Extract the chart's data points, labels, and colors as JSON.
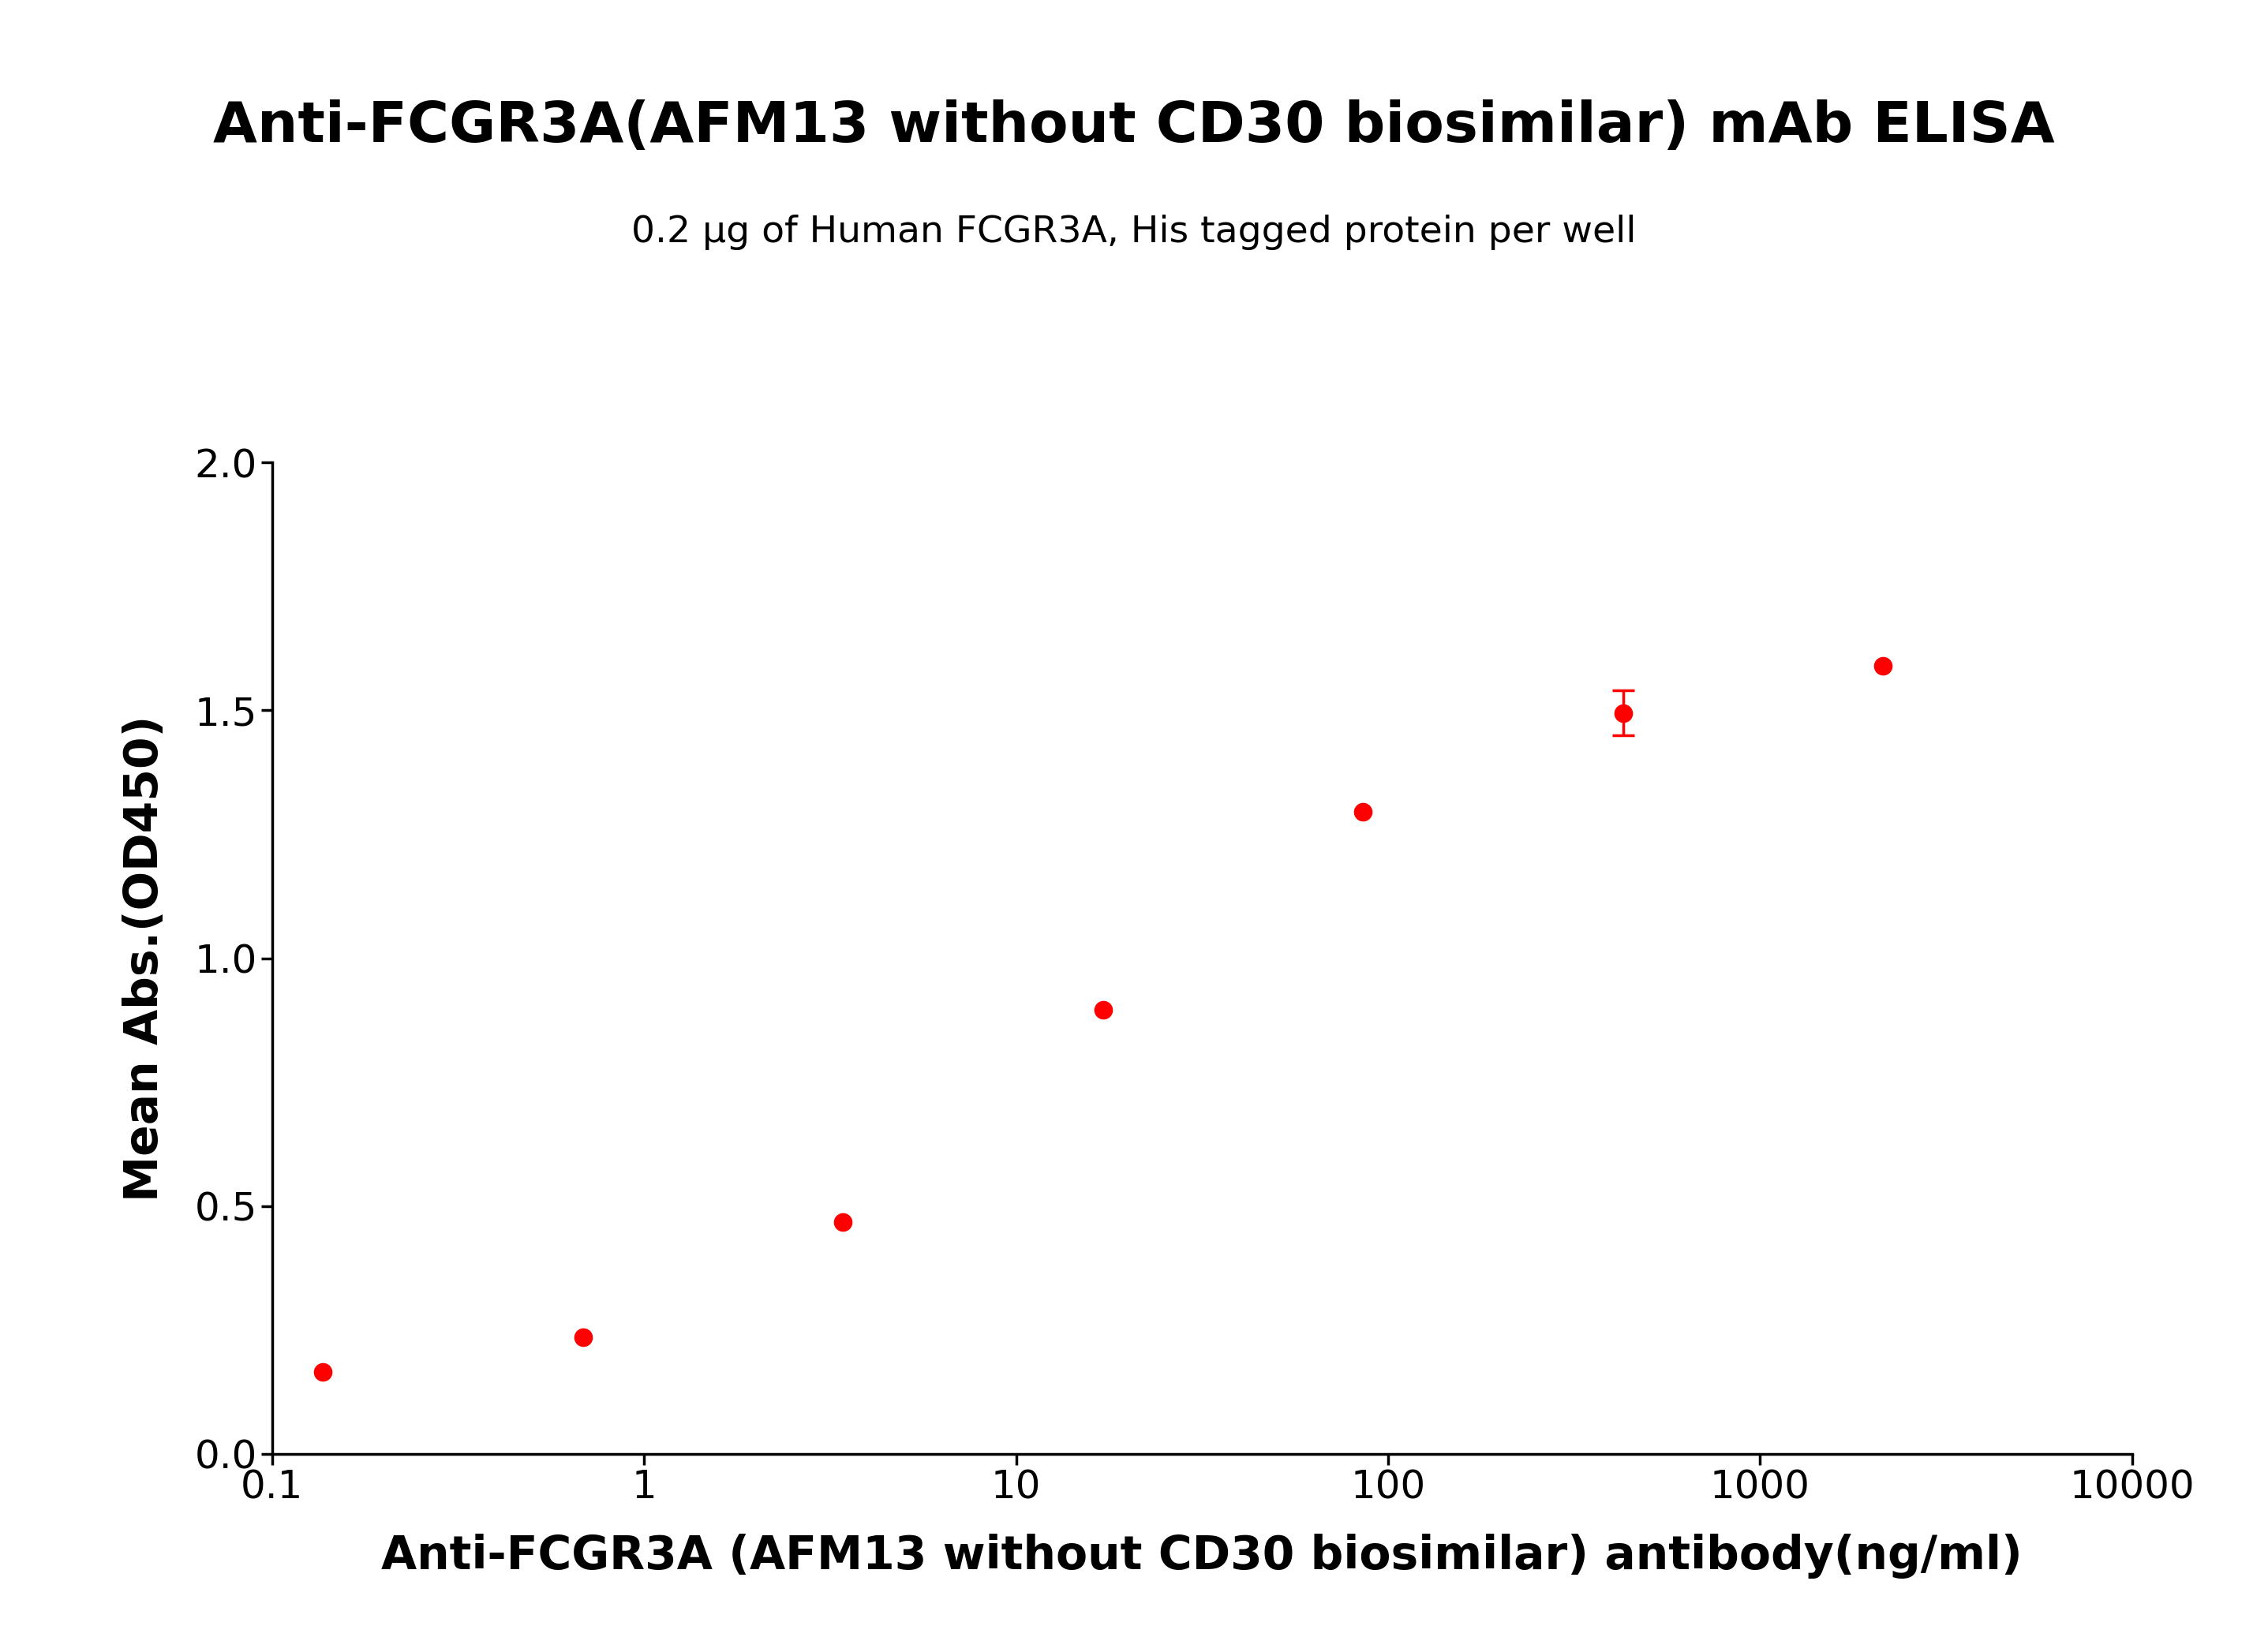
{
  "title": "Anti-FCGR3A(AFM13 without CD30 biosimilar) mAb ELISA",
  "subtitle": "0.2 μg of Human FCGR3A, His tagged protein per well",
  "xlabel": "Anti-FCGR3A (AFM13 without CD30 biosimilar) antibody(ng/ml)",
  "ylabel": "Mean Abs.(OD450)",
  "x_data": [
    0.137,
    0.685,
    3.425,
    17.125,
    85.625,
    428.125,
    2140.625
  ],
  "y_data": [
    0.165,
    0.235,
    0.468,
    0.895,
    1.295,
    1.495,
    1.59
  ],
  "y_err": [
    0.0,
    0.0,
    0.0,
    0.0,
    0.0,
    0.045,
    0.0
  ],
  "xlim": [
    0.1,
    10000
  ],
  "ylim": [
    0.0,
    2.0
  ],
  "yticks": [
    0.0,
    0.5,
    1.0,
    1.5,
    2.0
  ],
  "xticks": [
    0.1,
    1,
    10,
    100,
    1000,
    10000
  ],
  "color": "#FF0000",
  "background_color": "#FFFFFF",
  "title_fontsize": 52,
  "subtitle_fontsize": 34,
  "label_fontsize": 42,
  "tick_fontsize": 36,
  "line_width": 3.0,
  "marker_size": 16
}
